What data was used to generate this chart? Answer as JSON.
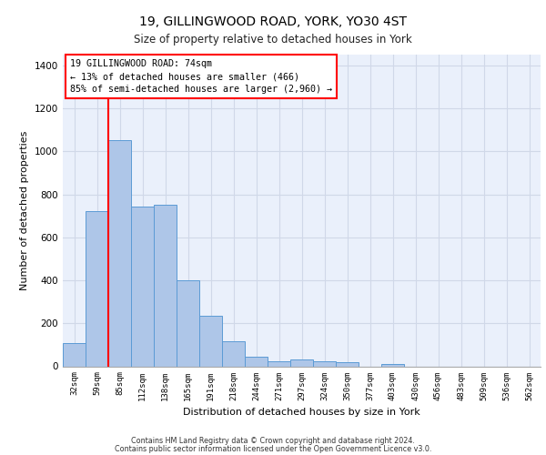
{
  "title1": "19, GILLINGWOOD ROAD, YORK, YO30 4ST",
  "title2": "Size of property relative to detached houses in York",
  "xlabel": "Distribution of detached houses by size in York",
  "ylabel": "Number of detached properties",
  "footer1": "Contains HM Land Registry data © Crown copyright and database right 2024.",
  "footer2": "Contains public sector information licensed under the Open Government Licence v3.0.",
  "annotation_line1": "19 GILLINGWOOD ROAD: 74sqm",
  "annotation_line2": "← 13% of detached houses are smaller (466)",
  "annotation_line3": "85% of semi-detached houses are larger (2,960) →",
  "bar_categories": [
    "32sqm",
    "59sqm",
    "85sqm",
    "112sqm",
    "138sqm",
    "165sqm",
    "191sqm",
    "218sqm",
    "244sqm",
    "271sqm",
    "297sqm",
    "324sqm",
    "350sqm",
    "377sqm",
    "403sqm",
    "430sqm",
    "456sqm",
    "483sqm",
    "509sqm",
    "536sqm",
    "562sqm"
  ],
  "bar_values": [
    110,
    720,
    1050,
    745,
    750,
    400,
    235,
    115,
    45,
    25,
    30,
    25,
    20,
    0,
    12,
    0,
    0,
    0,
    0,
    0,
    0
  ],
  "bar_color": "#aec6e8",
  "bar_edge_color": "#5b9bd5",
  "vline_color": "red",
  "annotation_box_edge_color": "red",
  "ylim": [
    0,
    1450
  ],
  "yticks": [
    0,
    200,
    400,
    600,
    800,
    1000,
    1200,
    1400
  ],
  "grid_color": "#d0d8e8",
  "plot_bg_color": "#eaf0fb"
}
